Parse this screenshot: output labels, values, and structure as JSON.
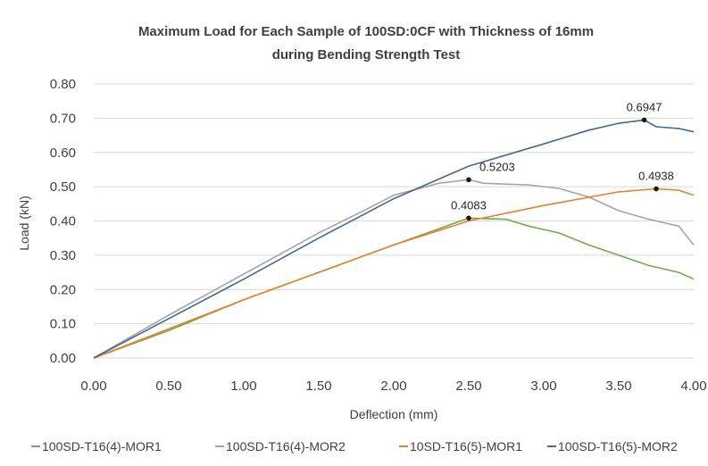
{
  "chart_data": {
    "type": "line",
    "title_line1": "Maximum Load for Each Sample of 100SD:0CF with Thickness of 16mm",
    "title_line2": "during Bending Strength Test",
    "xlabel": "Deflection (mm)",
    "ylabel": "Load (kN)",
    "xlim": [
      0,
      4
    ],
    "ylim": [
      0,
      0.8
    ],
    "x_ticks": [
      "0.00",
      "0.50",
      "1.00",
      "1.50",
      "2.00",
      "2.50",
      "3.00",
      "3.50",
      "4.00"
    ],
    "y_ticks": [
      "0.00",
      "0.10",
      "0.20",
      "0.30",
      "0.40",
      "0.50",
      "0.60",
      "0.70",
      "0.80"
    ],
    "grid": "horizontal",
    "legend_position": "bottom",
    "series": [
      {
        "name": "100SD-T16(4)-MOR1",
        "color": "#70ad47",
        "points": [
          [
            0,
            0
          ],
          [
            0.5,
            0.08
          ],
          [
            1.0,
            0.17
          ],
          [
            1.5,
            0.25
          ],
          [
            2.0,
            0.33
          ],
          [
            2.5,
            0.4083
          ],
          [
            2.75,
            0.405
          ],
          [
            2.9,
            0.385
          ],
          [
            3.1,
            0.365
          ],
          [
            3.3,
            0.33
          ],
          [
            3.5,
            0.3
          ],
          [
            3.7,
            0.27
          ],
          [
            3.9,
            0.25
          ],
          [
            4.0,
            0.23
          ]
        ],
        "peak": {
          "x": 2.5,
          "y": 0.4083,
          "label": "0.4083"
        }
      },
      {
        "name": "100SD-T16(4)-MOR2",
        "color": "#a5a5a5",
        "points": [
          [
            0,
            0
          ],
          [
            0.5,
            0.125
          ],
          [
            1.0,
            0.245
          ],
          [
            1.5,
            0.365
          ],
          [
            1.8,
            0.43
          ],
          [
            2.0,
            0.475
          ],
          [
            2.3,
            0.51
          ],
          [
            2.5,
            0.5203
          ],
          [
            2.6,
            0.51
          ],
          [
            2.9,
            0.505
          ],
          [
            3.1,
            0.495
          ],
          [
            3.3,
            0.47
          ],
          [
            3.5,
            0.43
          ],
          [
            3.7,
            0.405
          ],
          [
            3.9,
            0.385
          ],
          [
            4.0,
            0.33
          ]
        ],
        "peak": {
          "x": 2.5,
          "y": 0.5203,
          "label": "0.5203"
        }
      },
      {
        "name": "10SD-T16(5)-MOR1",
        "color": "#ed7d31",
        "points": [
          [
            0,
            0
          ],
          [
            0.5,
            0.085
          ],
          [
            1.0,
            0.17
          ],
          [
            1.5,
            0.25
          ],
          [
            2.0,
            0.33
          ],
          [
            2.5,
            0.4
          ],
          [
            3.0,
            0.445
          ],
          [
            3.5,
            0.485
          ],
          [
            3.75,
            0.4938
          ],
          [
            3.9,
            0.49
          ],
          [
            4.0,
            0.475
          ]
        ],
        "peak": {
          "x": 3.75,
          "y": 0.4938,
          "label": "0.4938"
        }
      },
      {
        "name": "100SD-T16(5)-MOR2",
        "color": "#44688f",
        "points": [
          [
            0,
            0
          ],
          [
            0.5,
            0.115
          ],
          [
            1.0,
            0.23
          ],
          [
            1.5,
            0.35
          ],
          [
            2.0,
            0.465
          ],
          [
            2.5,
            0.56
          ],
          [
            3.0,
            0.625
          ],
          [
            3.3,
            0.665
          ],
          [
            3.5,
            0.685
          ],
          [
            3.67,
            0.6947
          ],
          [
            3.75,
            0.675
          ],
          [
            3.9,
            0.67
          ],
          [
            4.0,
            0.66
          ]
        ],
        "peak": {
          "x": 3.67,
          "y": 0.6947,
          "label": "0.6947"
        }
      }
    ]
  }
}
